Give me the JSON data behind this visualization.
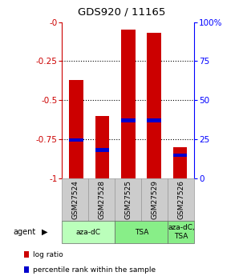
{
  "title": "GDS920 / 11165",
  "samples": [
    "GSM27524",
    "GSM27528",
    "GSM27525",
    "GSM27529",
    "GSM27526"
  ],
  "bar_values": [
    -0.37,
    -0.6,
    -0.05,
    -0.07,
    -0.8
  ],
  "bar_bottom": -1.0,
  "percentile_values": [
    -0.755,
    -0.82,
    -0.63,
    -0.63,
    -0.855
  ],
  "bar_color": "#cc0000",
  "percentile_color": "#0000cc",
  "ylim_left": [
    -1.0,
    0.0
  ],
  "ylim_right": [
    0,
    100
  ],
  "yticks_left": [
    -1.0,
    -0.75,
    -0.5,
    -0.25,
    0.0
  ],
  "yticks_right": [
    0,
    25,
    50,
    75,
    100
  ],
  "ytick_labels_left": [
    "-1",
    "-0.75",
    "-0.5",
    "-0.25",
    "-0"
  ],
  "ytick_labels_right": [
    "0",
    "25",
    "50",
    "75",
    "100%"
  ],
  "groups": [
    {
      "label": "aza-dC",
      "indices": [
        0,
        1
      ],
      "color": "#bbffbb"
    },
    {
      "label": "TSA",
      "indices": [
        2,
        3
      ],
      "color": "#88ee88"
    },
    {
      "label": "aza-dC,\nTSA",
      "indices": [
        4
      ],
      "color": "#88ee88"
    }
  ],
  "legend_items": [
    {
      "color": "#cc0000",
      "label": "log ratio"
    },
    {
      "color": "#0000cc",
      "label": "percentile rank within the sample"
    }
  ],
  "background_color": "#ffffff",
  "sample_box_color": "#cccccc",
  "bar_width": 0.55,
  "left_axis_color": "#cc0000",
  "right_axis_color": "#0000ff",
  "grid_yticks": [
    -0.25,
    -0.5,
    -0.75
  ]
}
